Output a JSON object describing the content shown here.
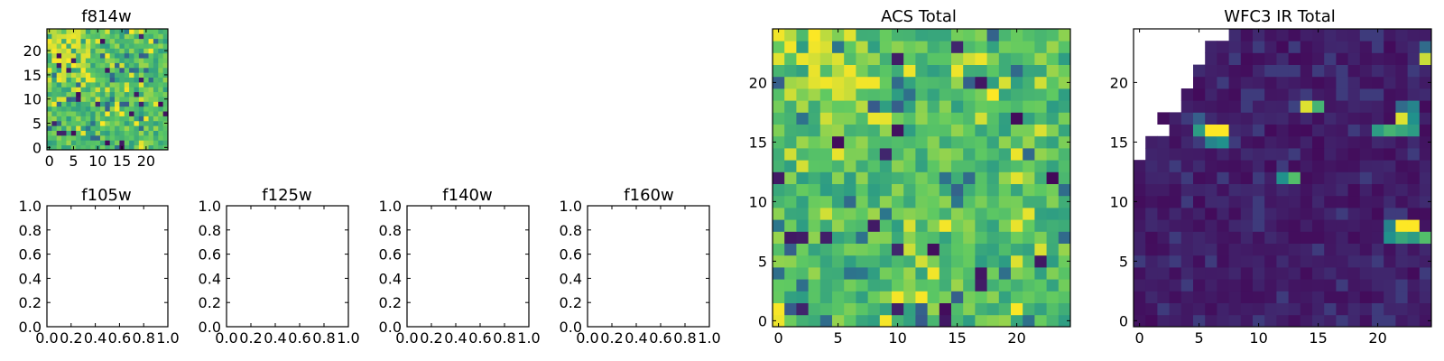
{
  "figure": {
    "background": "#ffffff"
  },
  "colormap": [
    "#440154",
    "#3b528b",
    "#21918c",
    "#5ec962",
    "#fde725"
  ],
  "chart_data": [
    {
      "id": "f814w",
      "type": "heatmap",
      "title": "f814w",
      "grid_size": 25,
      "xlim": [
        -0.5,
        24.5
      ],
      "ylim": [
        -0.5,
        24.5
      ],
      "xticks": [
        0,
        5,
        10,
        15,
        20
      ],
      "yticks": [
        0,
        5,
        10,
        15,
        20
      ],
      "xtick_labels": [
        "0",
        "5",
        "10",
        "15",
        "20"
      ],
      "ytick_labels": [
        "0",
        "5",
        "10",
        "15",
        "20"
      ],
      "color_range": [
        0,
        1
      ],
      "seed": 11,
      "empty": false
    },
    {
      "id": "f105w",
      "type": "heatmap",
      "title": "f105w",
      "empty": true,
      "xlim": [
        0,
        1
      ],
      "ylim": [
        0,
        1
      ],
      "xticks": [
        0,
        0.2,
        0.4,
        0.6,
        0.8,
        1.0
      ],
      "yticks": [
        0,
        0.2,
        0.4,
        0.6,
        0.8,
        1.0
      ],
      "xtick_labels": [
        "0.0",
        "0.2",
        "0.4",
        "0.6",
        "0.8",
        "1.0"
      ],
      "ytick_labels": [
        "0.0",
        "0.2",
        "0.4",
        "0.6",
        "0.8",
        "1.0"
      ]
    },
    {
      "id": "f125w",
      "type": "heatmap",
      "title": "f125w",
      "empty": true,
      "xlim": [
        0,
        1
      ],
      "ylim": [
        0,
        1
      ],
      "xticks": [
        0,
        0.2,
        0.4,
        0.6,
        0.8,
        1.0
      ],
      "yticks": [
        0,
        0.2,
        0.4,
        0.6,
        0.8,
        1.0
      ],
      "xtick_labels": [
        "0.0",
        "0.2",
        "0.4",
        "0.6",
        "0.8",
        "1.0"
      ],
      "ytick_labels": [
        "0.0",
        "0.2",
        "0.4",
        "0.6",
        "0.8",
        "1.0"
      ]
    },
    {
      "id": "f140w",
      "type": "heatmap",
      "title": "f140w",
      "empty": true,
      "xlim": [
        0,
        1
      ],
      "ylim": [
        0,
        1
      ],
      "xticks": [
        0,
        0.2,
        0.4,
        0.6,
        0.8,
        1.0
      ],
      "yticks": [
        0,
        0.2,
        0.4,
        0.6,
        0.8,
        1.0
      ],
      "xtick_labels": [
        "0.0",
        "0.2",
        "0.4",
        "0.6",
        "0.8",
        "1.0"
      ],
      "ytick_labels": [
        "0.0",
        "0.2",
        "0.4",
        "0.6",
        "0.8",
        "1.0"
      ]
    },
    {
      "id": "f160w",
      "type": "heatmap",
      "title": "f160w",
      "empty": true,
      "xlim": [
        0,
        1
      ],
      "ylim": [
        0,
        1
      ],
      "xticks": [
        0,
        0.2,
        0.4,
        0.6,
        0.8,
        1.0
      ],
      "yticks": [
        0,
        0.2,
        0.4,
        0.6,
        0.8,
        1.0
      ],
      "xtick_labels": [
        "0.0",
        "0.2",
        "0.4",
        "0.6",
        "0.8",
        "1.0"
      ],
      "ytick_labels": [
        "0.0",
        "0.2",
        "0.4",
        "0.6",
        "0.8",
        "1.0"
      ]
    },
    {
      "id": "acs_total",
      "type": "heatmap",
      "title": "ACS Total",
      "grid_size": 25,
      "xlim": [
        -0.5,
        24.5
      ],
      "ylim": [
        -0.5,
        24.5
      ],
      "xticks": [
        0,
        5,
        10,
        15,
        20
      ],
      "yticks": [
        0,
        5,
        10,
        15,
        20
      ],
      "xtick_labels": [
        "0",
        "5",
        "10",
        "15",
        "20"
      ],
      "ytick_labels": [
        "0",
        "5",
        "10",
        "15",
        "20"
      ],
      "color_range": [
        0,
        1
      ],
      "seed": 29,
      "empty": false
    },
    {
      "id": "wfc3_ir_total",
      "type": "heatmap",
      "title": "WFC3 IR Total",
      "grid_size": 25,
      "xlim": [
        -0.5,
        24.5
      ],
      "ylim": [
        -0.5,
        24.5
      ],
      "xticks": [
        0,
        5,
        10,
        15,
        20
      ],
      "yticks": [
        0,
        5,
        10,
        15,
        20
      ],
      "xtick_labels": [
        "0",
        "5",
        "10",
        "15",
        "20"
      ],
      "ytick_labels": [
        "0",
        "5",
        "10",
        "15",
        "20"
      ],
      "color_range": [
        0,
        1
      ],
      "seed": 47,
      "empty": false,
      "masked_region": "upper-left (no data)",
      "hot_pixels": [
        {
          "x": 6,
          "y": 16,
          "value": 1.0
        },
        {
          "x": 7,
          "y": 16,
          "value": 1.0
        },
        {
          "x": 6,
          "y": 15,
          "value": 0.45
        },
        {
          "x": 7,
          "y": 15,
          "value": 0.5
        },
        {
          "x": 5,
          "y": 16,
          "value": 0.55
        },
        {
          "x": 5,
          "y": 17,
          "value": 0.3
        },
        {
          "x": 14,
          "y": 18,
          "value": 0.95
        },
        {
          "x": 15,
          "y": 18,
          "value": 0.65
        },
        {
          "x": 13,
          "y": 18,
          "value": 0.2
        },
        {
          "x": 12,
          "y": 12,
          "value": 0.5
        },
        {
          "x": 13,
          "y": 12,
          "value": 0.7
        },
        {
          "x": 22,
          "y": 17,
          "value": 0.95
        },
        {
          "x": 23,
          "y": 17,
          "value": 0.5
        },
        {
          "x": 22,
          "y": 16,
          "value": 0.6
        },
        {
          "x": 21,
          "y": 16,
          "value": 0.65
        },
        {
          "x": 20,
          "y": 16,
          "value": 0.55
        },
        {
          "x": 23,
          "y": 16,
          "value": 0.55
        },
        {
          "x": 22,
          "y": 18,
          "value": 0.35
        },
        {
          "x": 23,
          "y": 18,
          "value": 0.45
        },
        {
          "x": 24,
          "y": 22,
          "value": 0.92
        },
        {
          "x": 24,
          "y": 23,
          "value": 0.35
        },
        {
          "x": 22,
          "y": 8,
          "value": 1.0
        },
        {
          "x": 23,
          "y": 8,
          "value": 1.0
        },
        {
          "x": 21,
          "y": 8,
          "value": 0.45
        },
        {
          "x": 21,
          "y": 7,
          "value": 0.5
        },
        {
          "x": 22,
          "y": 7,
          "value": 0.6
        },
        {
          "x": 23,
          "y": 7,
          "value": 0.55
        },
        {
          "x": 24,
          "y": 7,
          "value": 0.7
        }
      ]
    }
  ]
}
